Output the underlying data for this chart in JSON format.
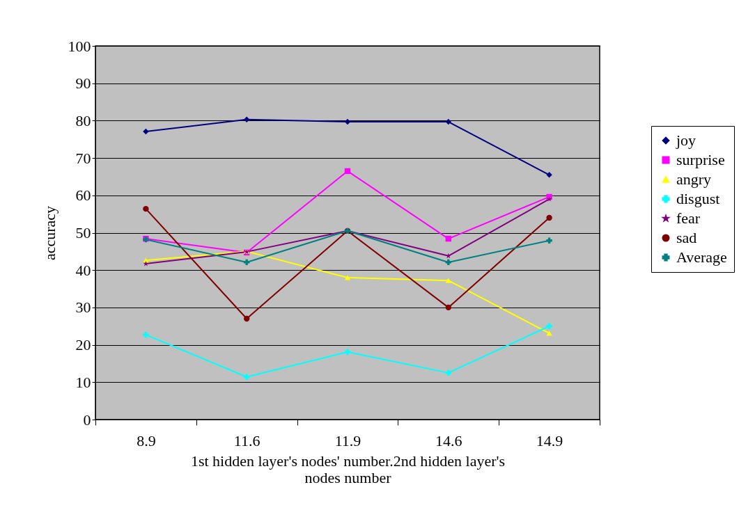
{
  "chart_data": {
    "type": "line",
    "xlabel": "1st hidden layer's nodes' number.2nd hidden layer's nodes number",
    "ylabel": "accuracy",
    "categories": [
      "8.9",
      "11.6",
      "11.9",
      "14.6",
      "14.9"
    ],
    "ylim": [
      0,
      100
    ],
    "yticks": [
      0,
      10,
      20,
      30,
      40,
      50,
      60,
      70,
      80,
      90,
      100
    ],
    "grid": "y",
    "legend": "right",
    "series": [
      {
        "name": "joy",
        "color": "#000080",
        "marker": "diamond",
        "values": [
          77.1,
          80.3,
          79.7,
          79.7,
          65.5
        ]
      },
      {
        "name": "surprise",
        "color": "#ff00ff",
        "marker": "square",
        "values": [
          48.4,
          44.7,
          66.5,
          48.4,
          59.6
        ]
      },
      {
        "name": "angry",
        "color": "#ffff00",
        "marker": "triangle",
        "values": [
          42.6,
          45,
          38,
          37.2,
          23.1
        ]
      },
      {
        "name": "disgust",
        "color": "#00ffff",
        "marker": "cross",
        "values": [
          22.7,
          11.4,
          18.1,
          12.5,
          25
        ]
      },
      {
        "name": "fear",
        "color": "#800080",
        "marker": "star",
        "values": [
          41.7,
          44.9,
          50.5,
          43.8,
          59
        ]
      },
      {
        "name": "sad",
        "color": "#800000",
        "marker": "circle",
        "values": [
          56.4,
          27,
          50.5,
          30,
          54
        ]
      },
      {
        "name": "Average",
        "color": "#008080",
        "marker": "cross",
        "values": [
          48.2,
          42.1,
          50.5,
          42.1,
          47.9
        ]
      }
    ]
  }
}
